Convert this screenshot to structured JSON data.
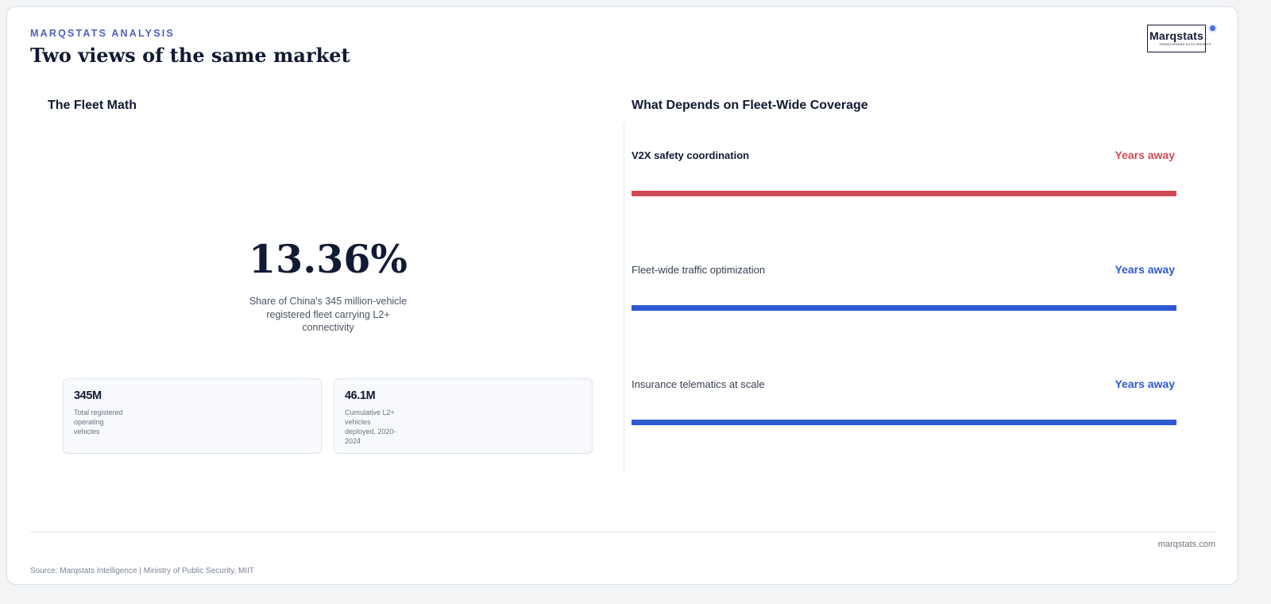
{
  "header": {
    "kicker": "MARQSTATS ANALYSIS",
    "title": "Two views of the same market"
  },
  "logo": {
    "wordmark": "Marqstats",
    "tagline": "TRANSFORMING AUTO INSIGHTS"
  },
  "left_panel": {
    "heading": "The Fleet Math",
    "headline_value": "13.36%",
    "headline_caption": "Share of China's 345 million-vehicle registered fleet carrying L2+ connectivity",
    "stats": [
      {
        "value": "345M",
        "label": "Total registered operating vehicles"
      },
      {
        "value": "46.1M",
        "label": "Cumulative L2+ vehicles deployed, 2020-2024"
      }
    ]
  },
  "right_panel": {
    "heading": "What Depends on Fleet-Wide Coverage",
    "items": [
      {
        "label": "V2X safety coordination",
        "status": "Years away",
        "color": "#d14b55",
        "progress": 1.0
      },
      {
        "label": "Fleet-wide traffic optimization",
        "status": "Years away",
        "color": "#2e59d0",
        "progress": 1.0
      },
      {
        "label": "Insurance telematics at scale",
        "status": "Years away",
        "color": "#2e59d0",
        "progress": 1.0
      }
    ]
  },
  "footer": {
    "site": "marqstats.com",
    "source": "Source: Marqstats Intelligence | Ministry of Public Security, MIIT"
  }
}
